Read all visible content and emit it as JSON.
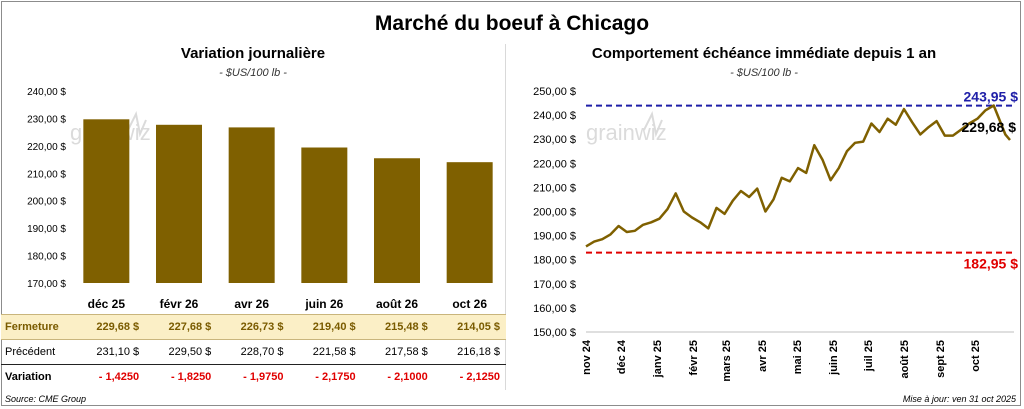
{
  "title": "Marché du boeuf à Chicago",
  "left": {
    "title": "Variation  journalière",
    "unit": "- $US/100 lb -",
    "rows": {
      "fermeture": {
        "label": "Fermeture",
        "values": [
          "229,68 $",
          "227,68 $",
          "226,73 $",
          "219,40 $",
          "215,48 $",
          "214,05 $"
        ]
      },
      "precedent": {
        "label": "Précédent",
        "values": [
          "231,10 $",
          "229,50 $",
          "228,70 $",
          "221,58 $",
          "217,58 $",
          "216,18 $"
        ]
      },
      "variation": {
        "label": "Variation",
        "values": [
          "- 1,4250",
          "- 1,8250",
          "- 1,9750",
          "- 2,1750",
          "- 2,1000",
          "- 2,1250"
        ]
      }
    }
  },
  "right": {
    "title": "Comportement  échéance immédiate depuis 1 an",
    "unit": "- $US/100 lb -"
  },
  "watermark": "grainwiz",
  "source": "Source: CME Group",
  "updated": "Mise à jour: ven 31 oct 2025",
  "colors": {
    "bar": "#7f6000",
    "line": "#7f6000",
    "high": "#1f1fa8",
    "low": "#e00000",
    "current": "#000000"
  },
  "chart_data": [
    {
      "type": "bar",
      "title": "Variation  journalière",
      "subtitle": "- $US/100 lb -",
      "categories": [
        "déc 25",
        "févr 26",
        "avr 26",
        "juin 26",
        "août 26",
        "oct 26"
      ],
      "values": [
        229.68,
        227.68,
        226.73,
        219.4,
        215.48,
        214.05
      ],
      "ylim": [
        170,
        240
      ],
      "yticks": [
        "170,00 $",
        "180,00 $",
        "190,00 $",
        "200,00 $",
        "210,00 $",
        "220,00 $",
        "230,00 $",
        "240,00 $"
      ],
      "grid": false
    },
    {
      "type": "line",
      "title": "Comportement  échéance immédiate depuis 1 an",
      "subtitle": "- $US/100 lb -",
      "ylim": [
        150,
        250
      ],
      "yticks": [
        "150,00 $",
        "160,00 $",
        "170,00 $",
        "180,00 $",
        "190,00 $",
        "200,00 $",
        "210,00 $",
        "220,00 $",
        "230,00 $",
        "240,00 $",
        "250,00 $"
      ],
      "xticks": [
        "nov 24",
        "déc 24",
        "janv 25",
        "févr 25",
        "mars 25",
        "avr 25",
        "mai 25",
        "juin 25",
        "juil 25",
        "août 25",
        "sept 25",
        "oct 25"
      ],
      "x": [
        "2024-11-01",
        "2024-11-08",
        "2024-11-15",
        "2024-11-22",
        "2024-11-29",
        "2024-12-06",
        "2024-12-13",
        "2024-12-20",
        "2024-12-27",
        "2025-01-03",
        "2025-01-10",
        "2025-01-17",
        "2025-01-24",
        "2025-01-31",
        "2025-02-07",
        "2025-02-14",
        "2025-02-21",
        "2025-02-28",
        "2025-03-07",
        "2025-03-14",
        "2025-03-21",
        "2025-03-28",
        "2025-04-04",
        "2025-04-11",
        "2025-04-18",
        "2025-04-25",
        "2025-05-02",
        "2025-05-09",
        "2025-05-16",
        "2025-05-23",
        "2025-05-30",
        "2025-06-06",
        "2025-06-13",
        "2025-06-20",
        "2025-06-27",
        "2025-07-04",
        "2025-07-11",
        "2025-07-18",
        "2025-07-25",
        "2025-08-01",
        "2025-08-08",
        "2025-08-15",
        "2025-08-22",
        "2025-08-29",
        "2025-09-05",
        "2025-09-12",
        "2025-09-19",
        "2025-09-26",
        "2025-10-03",
        "2025-10-10",
        "2025-10-17",
        "2025-10-22",
        "2025-10-27",
        "2025-10-31"
      ],
      "series": [
        {
          "values": [
            185.5,
            187.5,
            188.5,
            190.5,
            194.0,
            191.5,
            192.0,
            194.5,
            195.5,
            197.0,
            201.0,
            207.5,
            200.0,
            197.5,
            195.5,
            193.0,
            201.5,
            199.0,
            204.5,
            208.5,
            206.0,
            209.5,
            200.0,
            205.0,
            214.0,
            212.5,
            218.0,
            216.0,
            227.5,
            221.5,
            213.0,
            218.0,
            225.0,
            228.5,
            229.0,
            236.5,
            233.0,
            238.5,
            236.0,
            242.5,
            237.0,
            232.0,
            235.0,
            237.5,
            231.5,
            231.5,
            234.0,
            236.5,
            238.5,
            242.0,
            244.0,
            238.0,
            232.0,
            229.68
          ]
        }
      ],
      "hlines": [
        {
          "label": "243,95 $",
          "value": 243.95
        },
        {
          "label": "182,95 $",
          "value": 182.95
        }
      ],
      "current_label": "229,68 $"
    }
  ]
}
